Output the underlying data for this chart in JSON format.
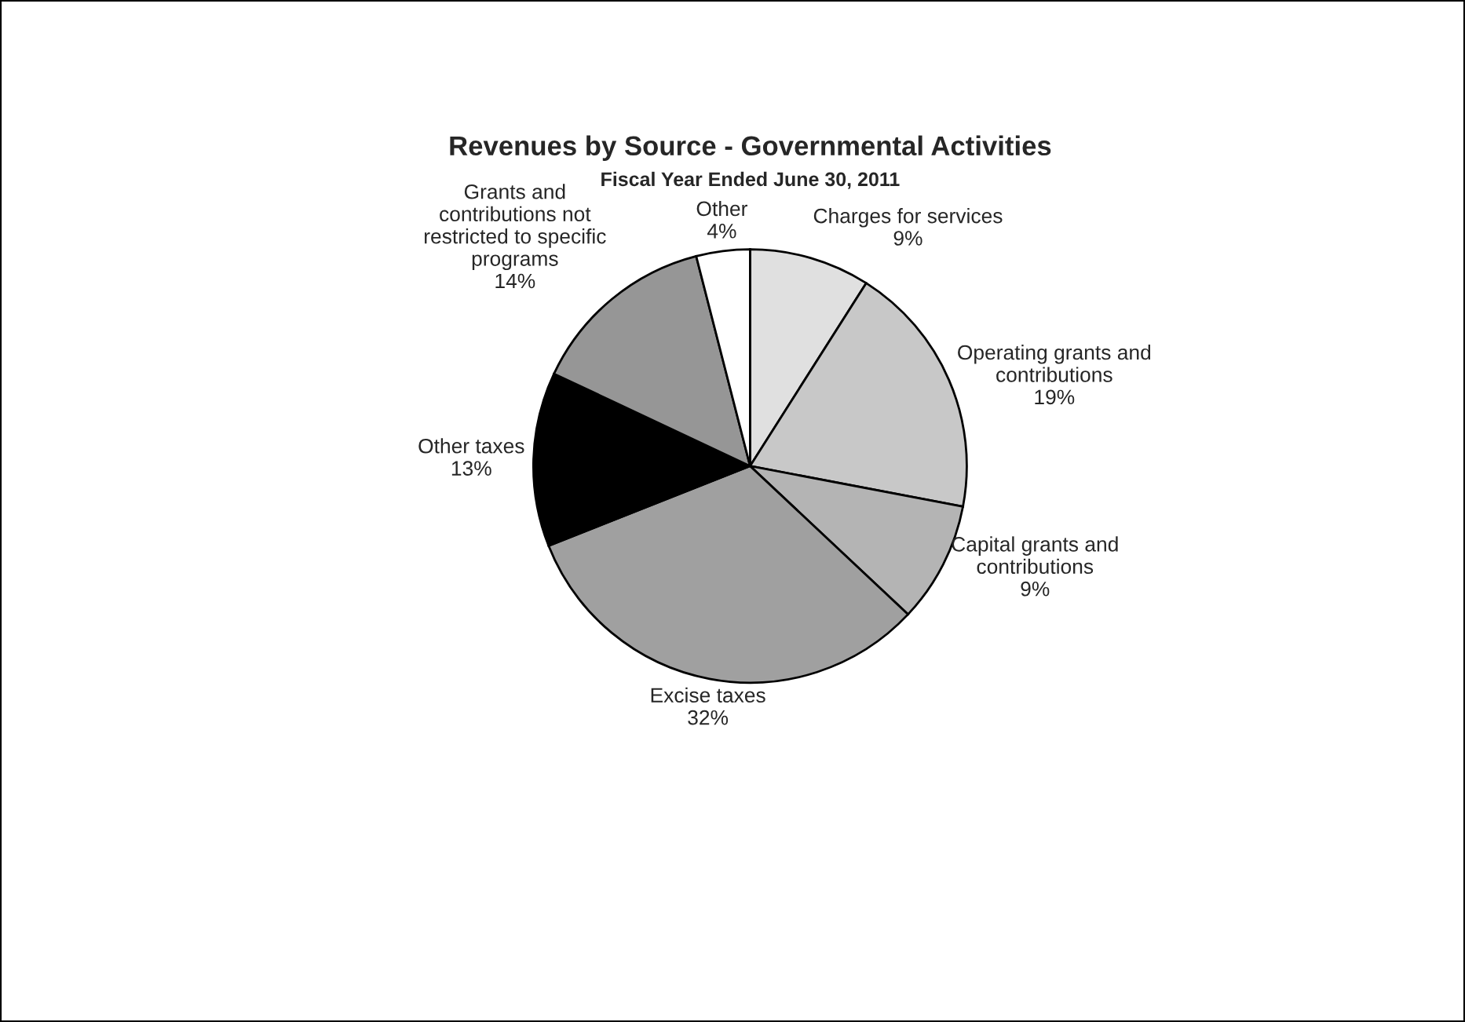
{
  "chart_data": {
    "type": "pie",
    "title": "Revenues by Source - Governmental Activities",
    "subtitle": "Fiscal Year Ended June 30, 2011",
    "categories": [
      "Charges for services",
      "Operating grants and\ncontributions",
      "Capital grants and\ncontributions",
      "Excise taxes",
      "Other taxes",
      "Grants and\ncontributions not\nrestricted to specific\nprograms",
      "Other"
    ],
    "values": [
      9,
      19,
      9,
      32,
      13,
      14,
      4
    ],
    "value_labels": [
      "9%",
      "19%",
      "9%",
      "32%",
      "13%",
      "14%",
      "4%"
    ],
    "colors": [
      "#e0e0e0",
      "#c8c8c8",
      "#b4b4b4",
      "#a0a0a0",
      "#000000",
      "#969696",
      "#ffffff"
    ],
    "legend": false
  }
}
